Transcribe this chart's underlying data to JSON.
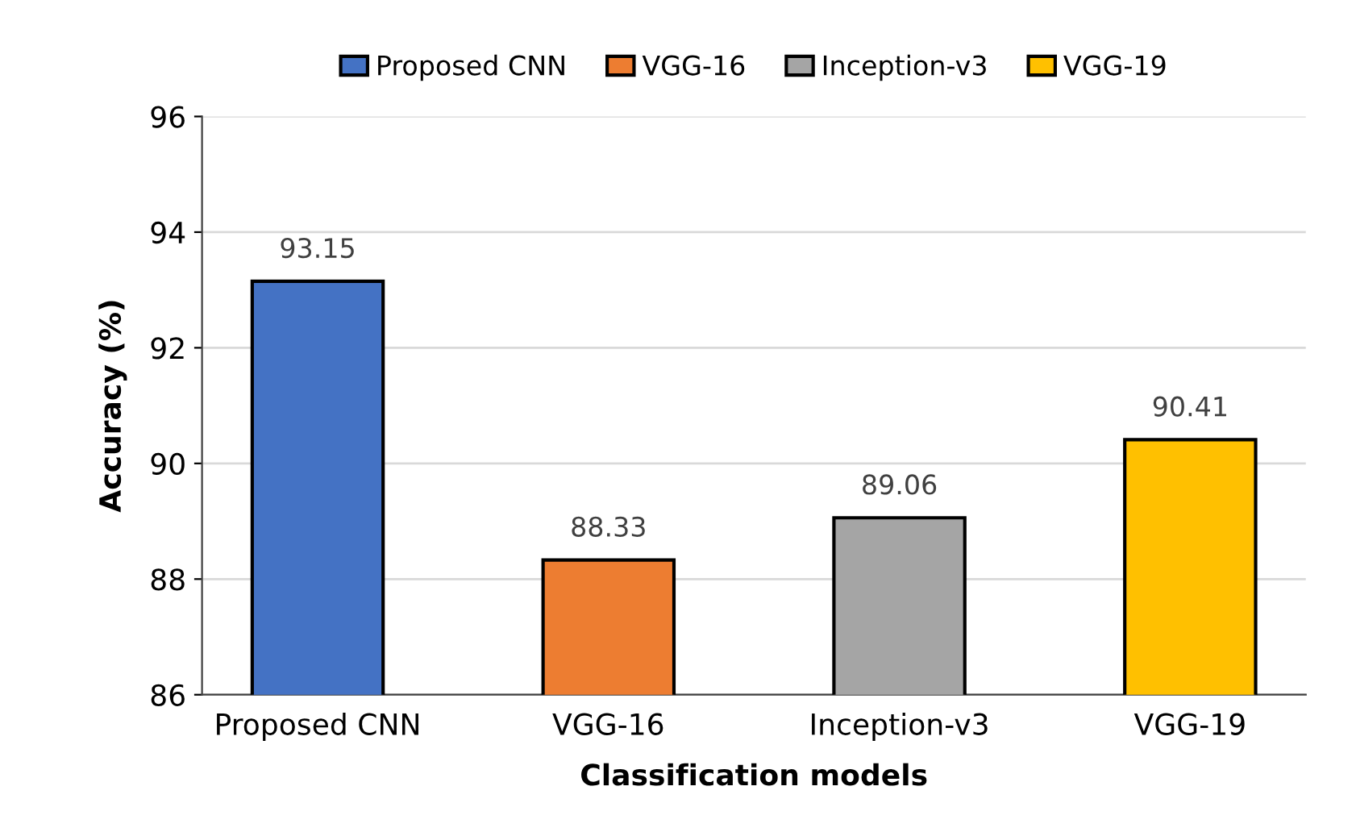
{
  "chart_data": {
    "type": "bar",
    "xlabel": "Classification models",
    "ylabel": "Accuracy (%)",
    "categories": [
      "Proposed CNN",
      "VGG-16",
      "Inception-v3",
      "VGG-19"
    ],
    "series": [
      {
        "name": "Proposed CNN",
        "color": "#4472c4",
        "values": [
          93.15,
          null,
          null,
          null
        ]
      },
      {
        "name": "VGG-16",
        "color": "#ed7d31",
        "values": [
          null,
          88.33,
          null,
          null
        ]
      },
      {
        "name": "Inception-v3",
        "color": "#a5a5a5",
        "values": [
          null,
          null,
          89.06,
          null
        ]
      },
      {
        "name": "VGG-19",
        "color": "#ffc000",
        "values": [
          null,
          null,
          null,
          90.41
        ]
      }
    ],
    "ylim": [
      86,
      96
    ],
    "yticks": [
      86,
      88,
      90,
      92,
      94,
      96
    ],
    "grid": "y",
    "legend": "top",
    "data_labels": true
  }
}
